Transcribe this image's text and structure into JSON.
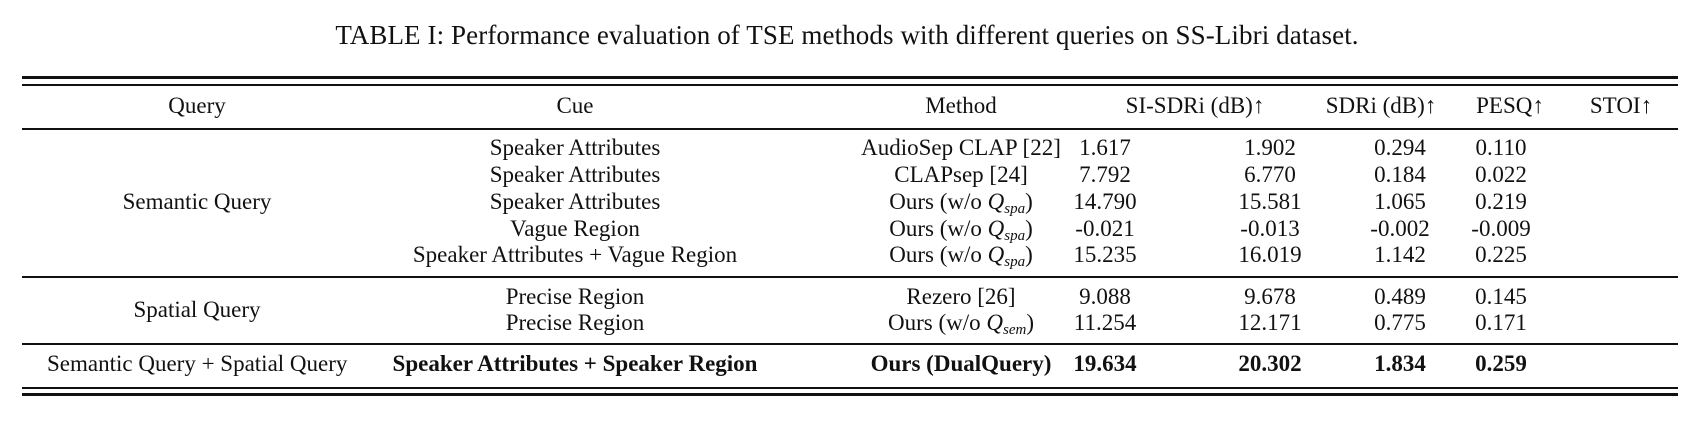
{
  "caption": "TABLE I: Performance evaluation of TSE methods with different queries on SS-Libri dataset.",
  "headers": [
    "Query",
    "Cue",
    "Method",
    "SI-SDRi (dB)↑",
    "SDRi (dB)↑",
    "PESQ↑",
    "STOI↑"
  ],
  "groups": [
    {
      "query": "Semantic Query",
      "rows": [
        {
          "cue": "Speaker Attributes",
          "method": "AudioSep CLAP [22]",
          "si_sdri": "1.617",
          "sdri": "1.902",
          "pesq": "0.294",
          "stoi": "0.110"
        },
        {
          "cue": "Speaker Attributes",
          "method": "CLAPsep [24]",
          "si_sdri": "7.792",
          "sdri": "6.770",
          "pesq": "0.184",
          "stoi": "0.022"
        },
        {
          "cue": "Speaker Attributes",
          "method_prefix": "Ours (w/o ",
          "method_var": "Q",
          "method_sub": "spa",
          "method_suffix": ")",
          "si_sdri": "14.790",
          "sdri": "15.581",
          "pesq": "1.065",
          "stoi": "0.219"
        },
        {
          "cue": "Vague Region",
          "method_prefix": "Ours (w/o ",
          "method_var": "Q",
          "method_sub": "spa",
          "method_suffix": ")",
          "si_sdri": "-0.021",
          "sdri": "-0.013",
          "pesq": "-0.002",
          "stoi": "-0.009"
        },
        {
          "cue": "Speaker Attributes + Vague Region",
          "method_prefix": "Ours (w/o ",
          "method_var": "Q",
          "method_sub": "spa",
          "method_suffix": ")",
          "si_sdri": "15.235",
          "sdri": "16.019",
          "pesq": "1.142",
          "stoi": "0.225"
        }
      ]
    },
    {
      "query": "Spatial Query",
      "rows": [
        {
          "cue": "Precise Region",
          "method": "Rezero [26]",
          "si_sdri": "9.088",
          "sdri": "9.678",
          "pesq": "0.489",
          "stoi": "0.145"
        },
        {
          "cue": "Precise Region",
          "method_prefix": "Ours (w/o ",
          "method_var": "Q",
          "method_sub": "sem",
          "method_suffix": ")",
          "si_sdri": "11.254",
          "sdri": "12.171",
          "pesq": "0.775",
          "stoi": "0.171"
        }
      ]
    },
    {
      "query": "Semantic Query + Spatial Query",
      "rows": [
        {
          "cue": "Speaker Attributes + Speaker Region",
          "method": "Ours (DualQuery)",
          "si_sdri": "19.634",
          "sdri": "20.302",
          "pesq": "1.834",
          "stoi": "0.259",
          "bold": true
        }
      ]
    }
  ]
}
